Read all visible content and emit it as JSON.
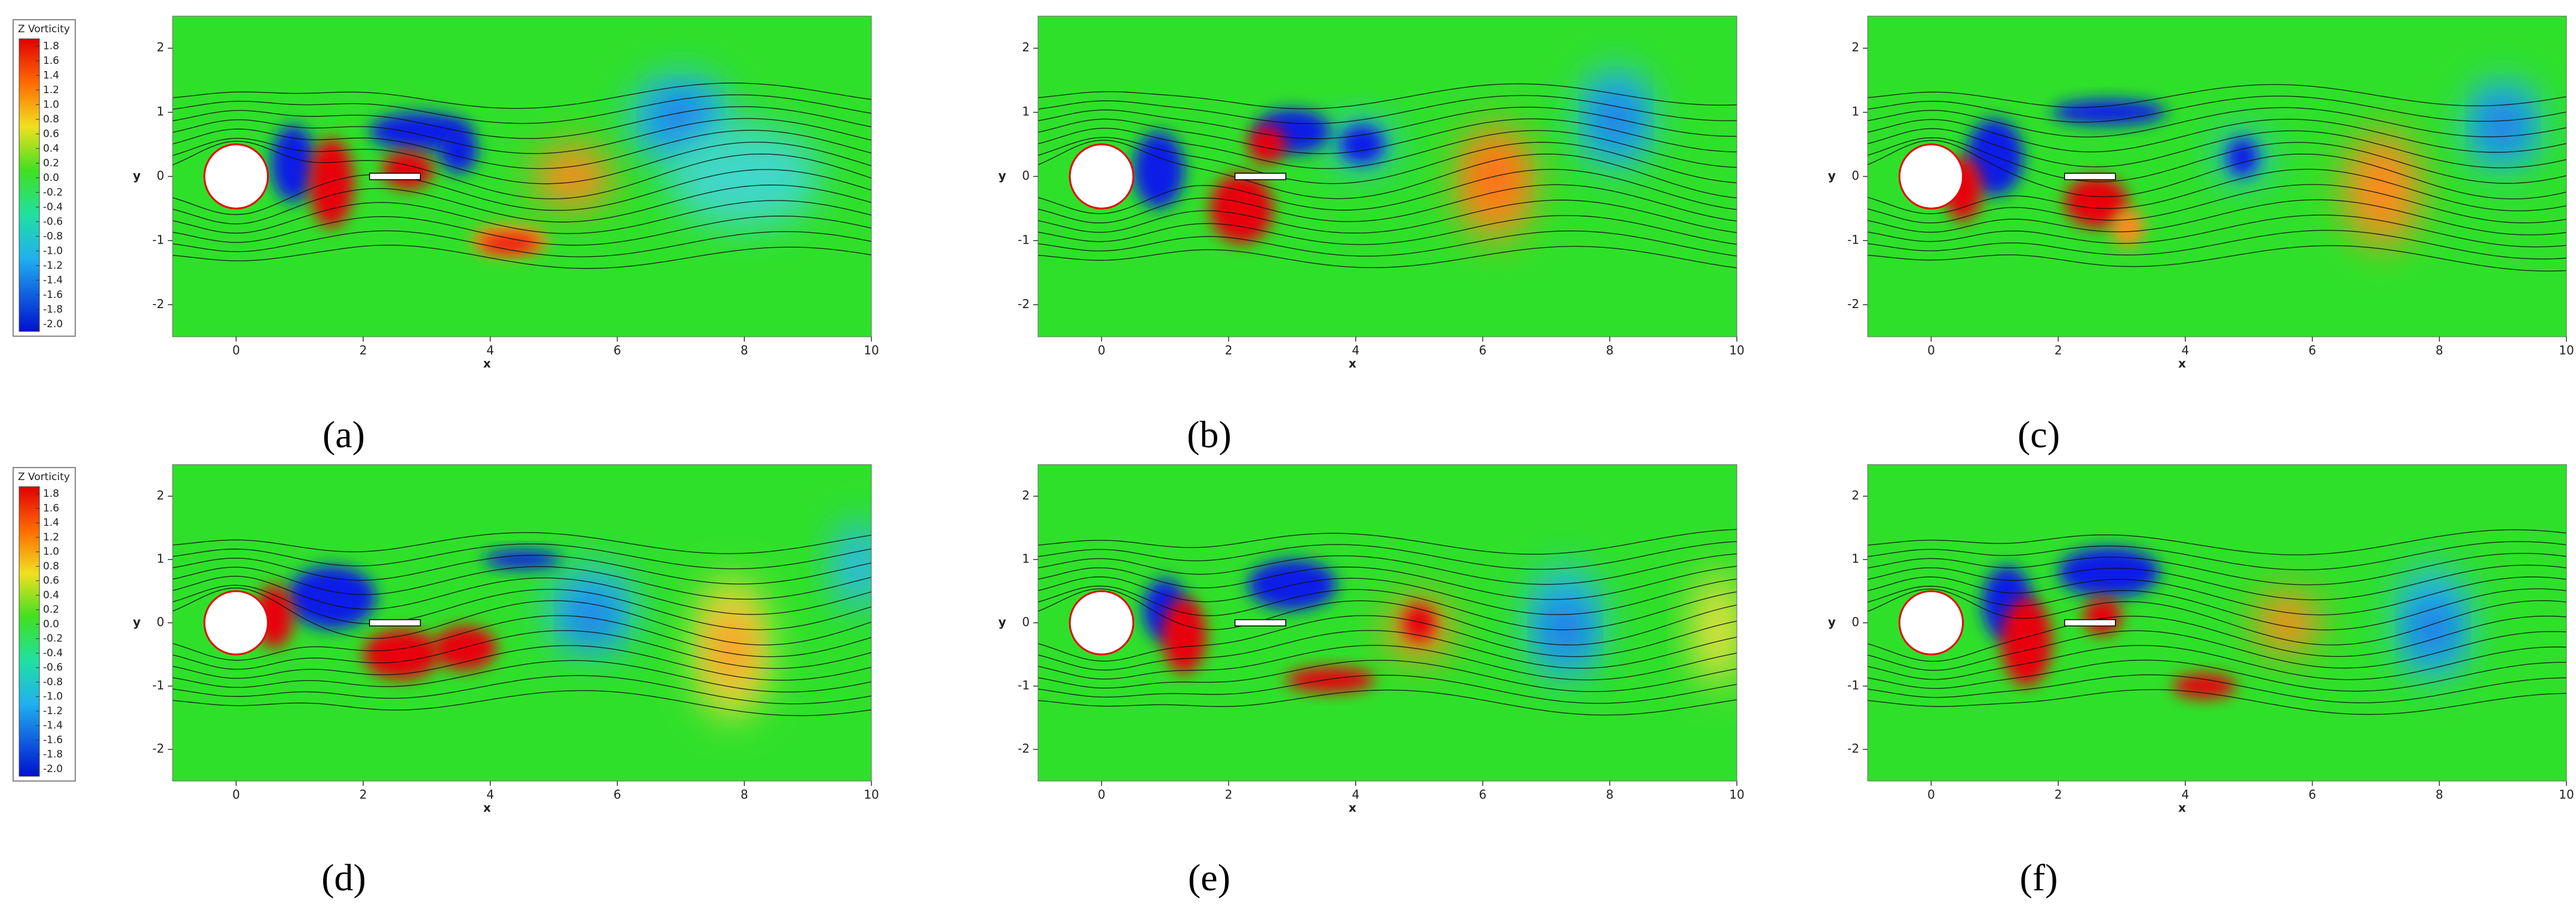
{
  "colorbars": [
    {
      "title": "Z Vorticity",
      "levels": [
        "1.8",
        "1.6",
        "1.4",
        "1.2",
        "1.0",
        "0.8",
        "0.6",
        "0.4",
        "0.2",
        "0.0",
        "-0.2",
        "-0.4",
        "-0.6",
        "-0.8",
        "-1.0",
        "-1.2",
        "-1.4",
        "-1.6",
        "-1.8",
        "-2.0"
      ]
    },
    {
      "title": "Z Vorticity",
      "levels": [
        "1.8",
        "1.6",
        "1.4",
        "1.2",
        "1.0",
        "0.8",
        "0.6",
        "0.4",
        "0.2",
        "0.0",
        "-0.2",
        "-0.4",
        "-0.6",
        "-0.8",
        "-1.0",
        "-1.2",
        "-1.4",
        "-1.6",
        "-1.8",
        "-2.0"
      ]
    }
  ],
  "axes": {
    "x_label": "x",
    "y_label": "y",
    "x_ticks": [
      0,
      2,
      4,
      6,
      8,
      10
    ],
    "y_ticks": [
      2,
      1,
      0,
      -1,
      -2
    ]
  },
  "panels": [
    {
      "label": "(a)"
    },
    {
      "label": "(b)"
    },
    {
      "label": "(c)"
    },
    {
      "label": "(d)"
    },
    {
      "label": "(e)"
    },
    {
      "label": "(f)"
    }
  ]
}
